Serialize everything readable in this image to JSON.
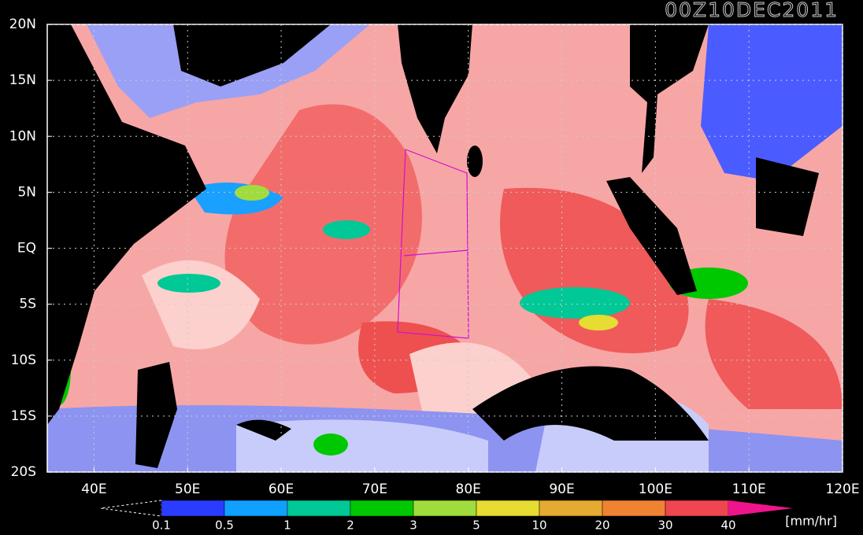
{
  "title": "00Z10DEC2011",
  "map": {
    "lonlim": [
      35,
      120
    ],
    "latlim": [
      -20,
      20
    ],
    "grid": true,
    "lon_ticks": [
      {
        "value": 40,
        "label": "40E"
      },
      {
        "value": 50,
        "label": "50E"
      },
      {
        "value": 60,
        "label": "60E"
      },
      {
        "value": 70,
        "label": "70E"
      },
      {
        "value": 80,
        "label": "80E"
      },
      {
        "value": 90,
        "label": "90E"
      },
      {
        "value": 100,
        "label": "100E"
      },
      {
        "value": 110,
        "label": "110E"
      },
      {
        "value": 120,
        "label": "120E"
      }
    ],
    "lat_ticks": [
      {
        "value": 20,
        "label": "20N"
      },
      {
        "value": 15,
        "label": "15N"
      },
      {
        "value": 10,
        "label": "10N"
      },
      {
        "value": 5,
        "label": "5N"
      },
      {
        "value": 0,
        "label": "EQ"
      },
      {
        "value": -5,
        "label": "5S"
      },
      {
        "value": -10,
        "label": "10S"
      },
      {
        "value": -15,
        "label": "15S"
      },
      {
        "value": -20,
        "label": "20S"
      }
    ]
  },
  "colorbar": {
    "levels": [
      0.1,
      0.5,
      1,
      2,
      3,
      5,
      10,
      20,
      30,
      40
    ],
    "colors": [
      "#2a3cff",
      "#10a0ff",
      "#00c896",
      "#00c800",
      "#a0dc3c",
      "#e6dc32",
      "#e6aa32",
      "#f08232",
      "#f04650"
    ],
    "over_color": "#f0148c",
    "unit": "[mm/hr]"
  }
}
